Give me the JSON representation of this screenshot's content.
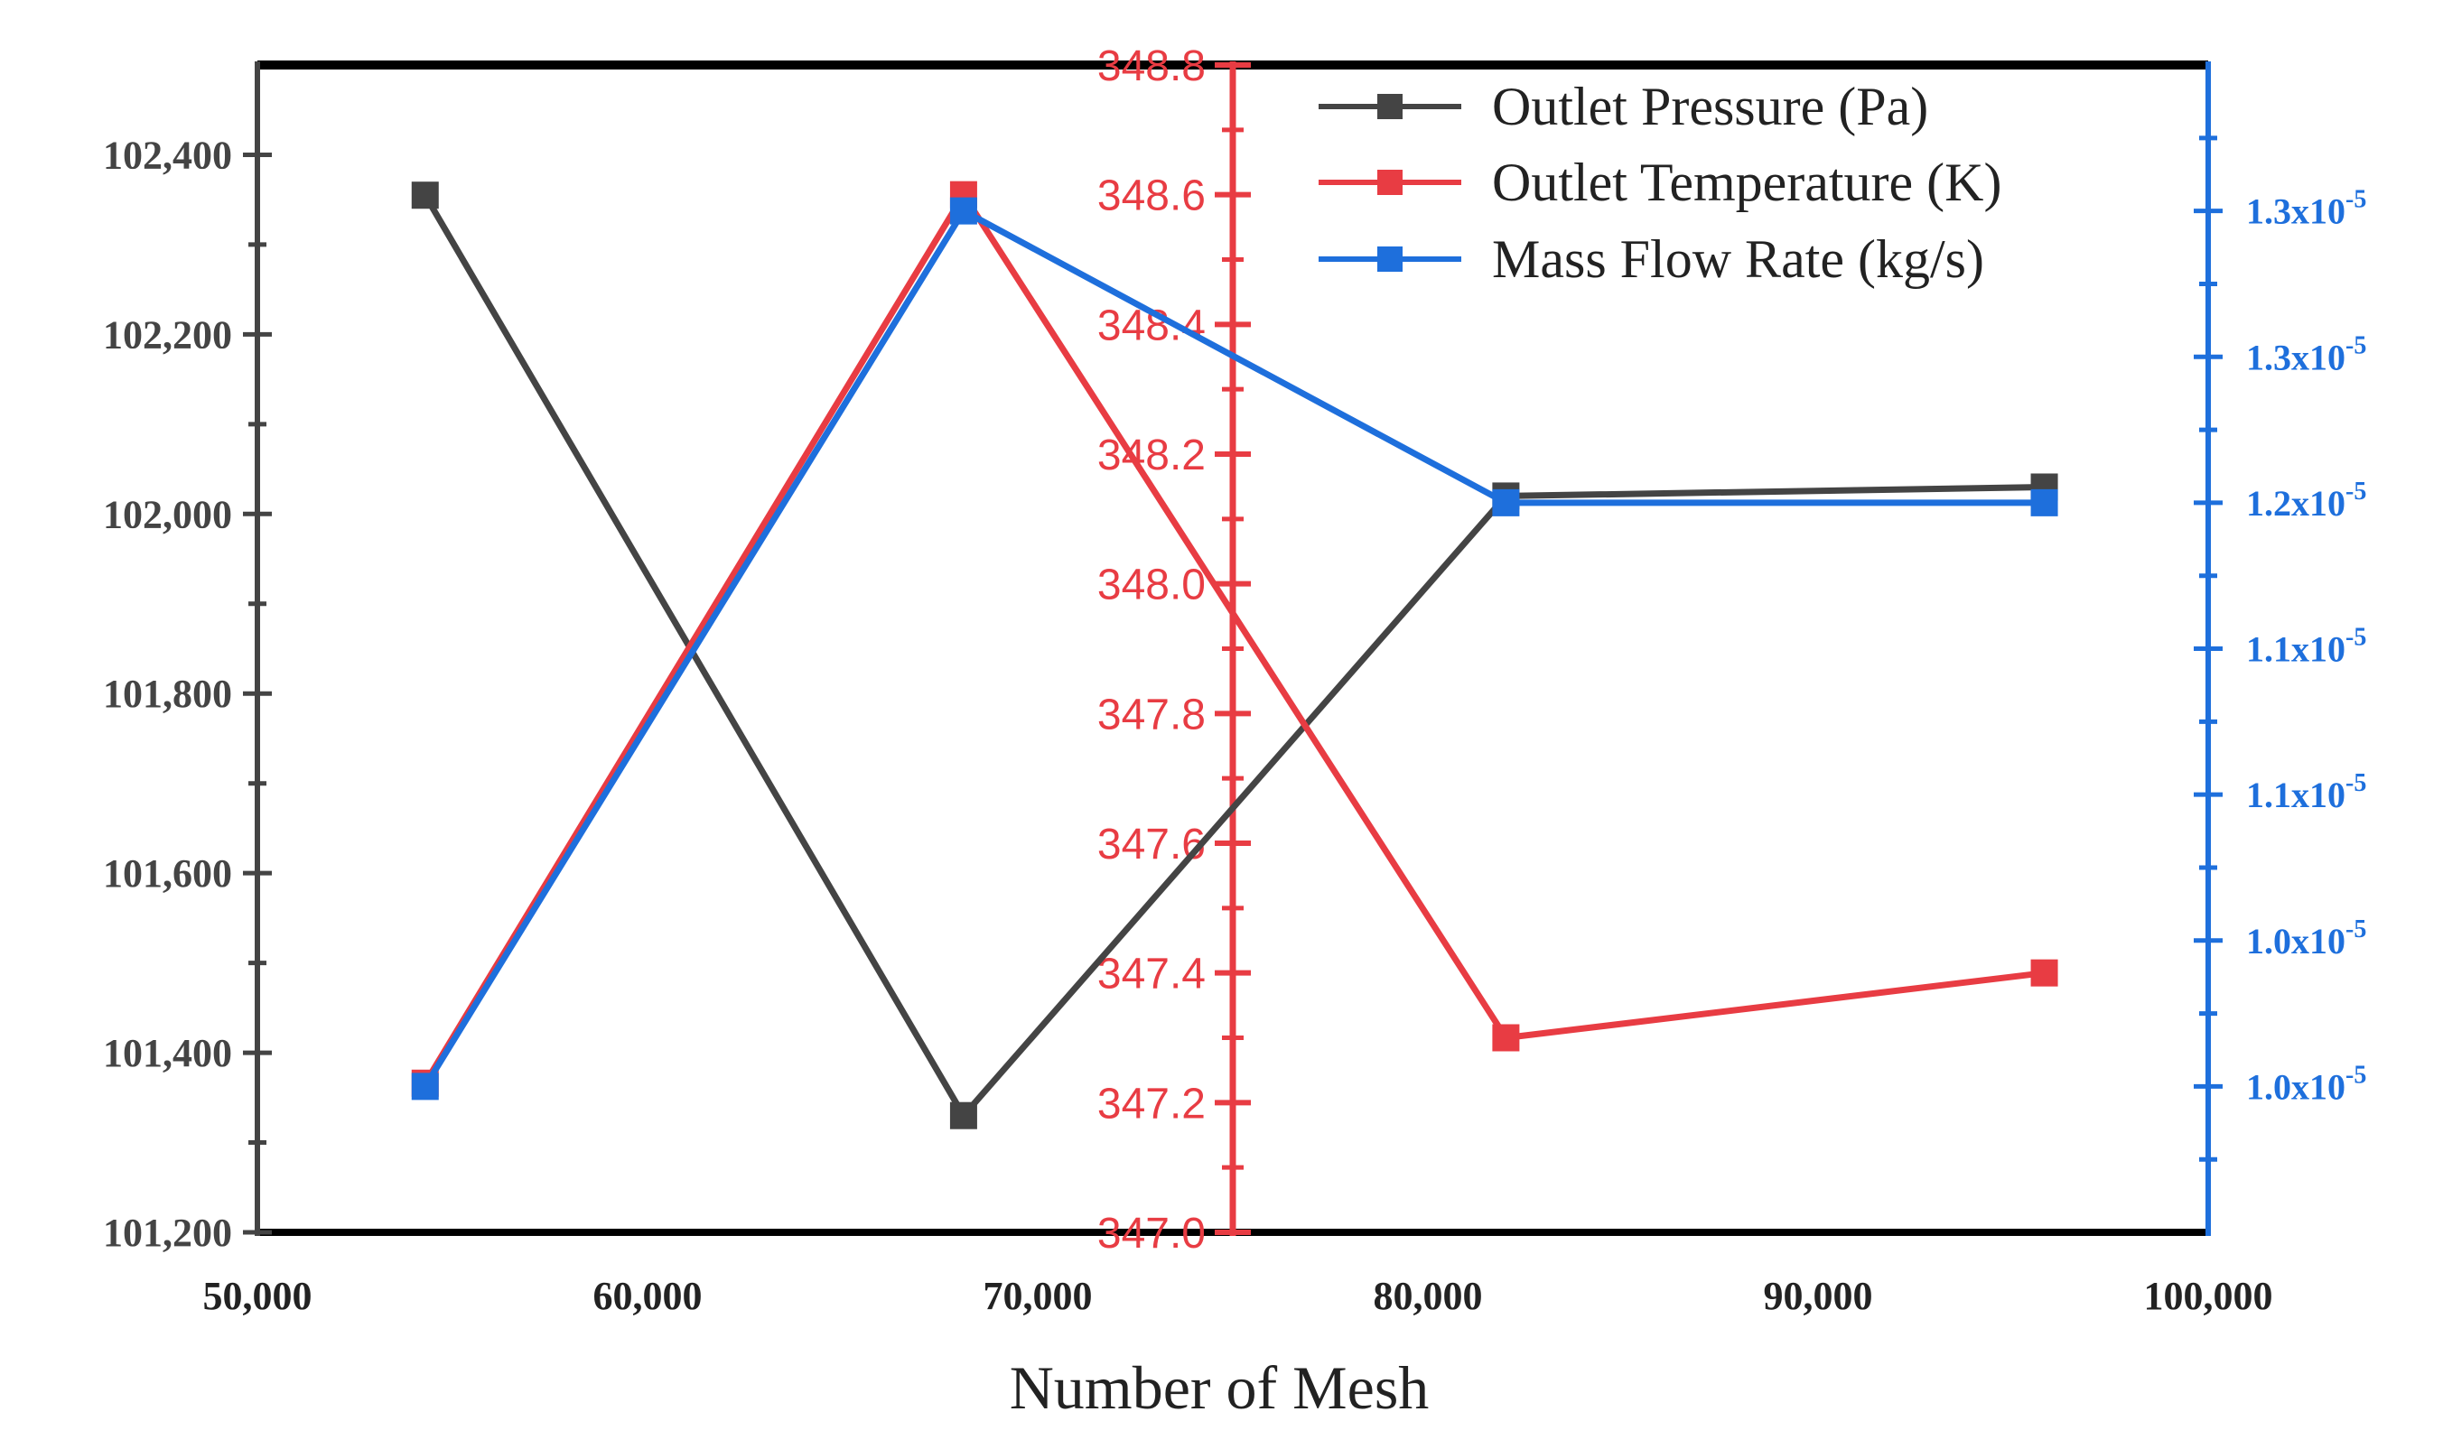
{
  "chart_data": {
    "type": "line",
    "xlabel": "Number of Mesh",
    "x_axis": {
      "range": [
        50000,
        100000
      ],
      "ticks": [
        50000,
        60000,
        70000,
        80000,
        90000,
        100000
      ],
      "tick_labels": [
        "50,000",
        "60,000",
        "70,000",
        "80,000",
        "90,000",
        "100,000"
      ]
    },
    "y_axes": {
      "left": {
        "range": [
          101200,
          102500
        ],
        "ticks": [
          101200,
          101400,
          101600,
          101800,
          102000,
          102200,
          102400
        ],
        "tick_labels": [
          "101,200",
          "101,400",
          "101,600",
          "101,800",
          "102,000",
          "102,200",
          "102,400"
        ],
        "color": "#444444"
      },
      "middle": {
        "range": [
          347.0,
          348.8
        ],
        "ticks": [
          347.0,
          347.2,
          347.4,
          347.6,
          347.8,
          348.0,
          348.2,
          348.4,
          348.6,
          348.8
        ],
        "tick_labels": [
          "347.0",
          "347.2",
          "347.4",
          "347.6",
          "347.8",
          "348.0",
          "348.2",
          "348.4",
          "348.6",
          "348.8"
        ],
        "color": "#e83c43",
        "axis_position_x": 75000
      },
      "right": {
        "range": [
          0.95,
          1.35
        ],
        "ticks": [
          1.0,
          1.05,
          1.1,
          1.15,
          1.2,
          1.25,
          1.3
        ],
        "tick_labels": [
          "1.0x10",
          "1.0x10",
          "1.1x10",
          "1.1x10",
          "1.2x10",
          "1.3x10",
          "1.3x10"
        ],
        "tick_exponent": "-5",
        "color": "#1e6fdc"
      }
    },
    "series": [
      {
        "name": "Outlet Pressure (Pa)",
        "axis": "left",
        "color": "#444444",
        "x": [
          54300,
          68100,
          82000,
          95800
        ],
        "y": [
          102355,
          101330,
          102020,
          102030
        ]
      },
      {
        "name": "Outlet Temperature (K)",
        "axis": "middle",
        "color": "#e83c43",
        "x": [
          54300,
          68100,
          82000,
          95800
        ],
        "y": [
          347.23,
          348.6,
          347.3,
          347.4
        ]
      },
      {
        "name": "Mass Flow Rate (kg/s)",
        "axis": "right",
        "color": "#1e6fdc",
        "x": [
          54300,
          68100,
          82000,
          95800
        ],
        "y": [
          1.0,
          1.3,
          1.2,
          1.2
        ]
      }
    ],
    "legend_position": "top-right",
    "grid": false,
    "marker": "square"
  }
}
